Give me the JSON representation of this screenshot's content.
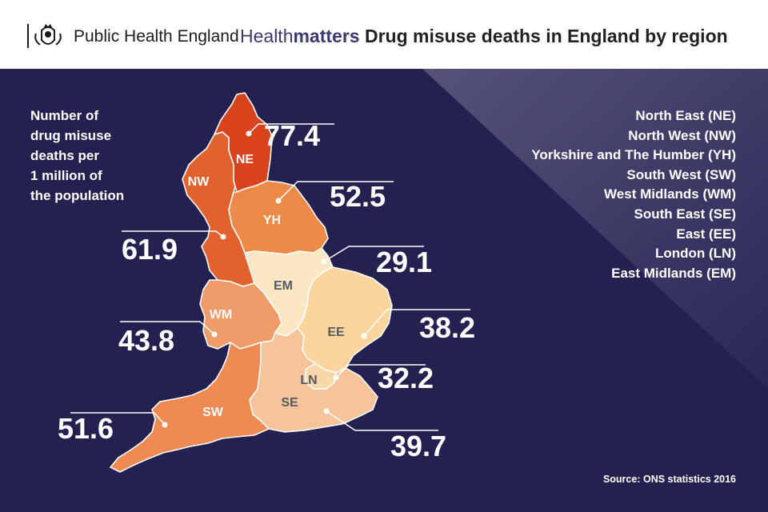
{
  "header": {
    "org_name": "Public Health England",
    "brand_light": "Health",
    "brand_bold": "matters",
    "title": "Drug misuse deaths in England by region"
  },
  "map": {
    "caption_lines": [
      "Number of",
      "drug misuse",
      "deaths per",
      "1 million of",
      "the population"
    ],
    "source": "Source: ONS statistics 2016",
    "colors": {
      "panel_bg": "#24204f",
      "NE": "#d8431e",
      "NW": "#e2622e",
      "YH": "#ee8a48",
      "SW": "#ee8a52",
      "WM": "#f09b6a",
      "SE": "#f6c39a",
      "EE": "#fad69e",
      "LN": "#f8d8a8",
      "EM": "#fbe7c4"
    },
    "regions": [
      {
        "code": "NE",
        "name": "North East (NE)",
        "value": "77.4"
      },
      {
        "code": "NW",
        "name": "North West (NW)",
        "value": "61.9"
      },
      {
        "code": "YH",
        "name": "Yorkshire and The Humber (YH)",
        "value": "52.5"
      },
      {
        "code": "SW",
        "name": "South West (SW)",
        "value": "51.6"
      },
      {
        "code": "WM",
        "name": "West Midlands (WM)",
        "value": "43.8"
      },
      {
        "code": "SE",
        "name": "South East (SE)",
        "value": "39.7"
      },
      {
        "code": "EE",
        "name": "East (EE)",
        "value": "38.2"
      },
      {
        "code": "LN",
        "name": "London (LN)",
        "value": "32.2"
      },
      {
        "code": "EM",
        "name": "East Midlands (EM)",
        "value": "29.1"
      }
    ]
  }
}
